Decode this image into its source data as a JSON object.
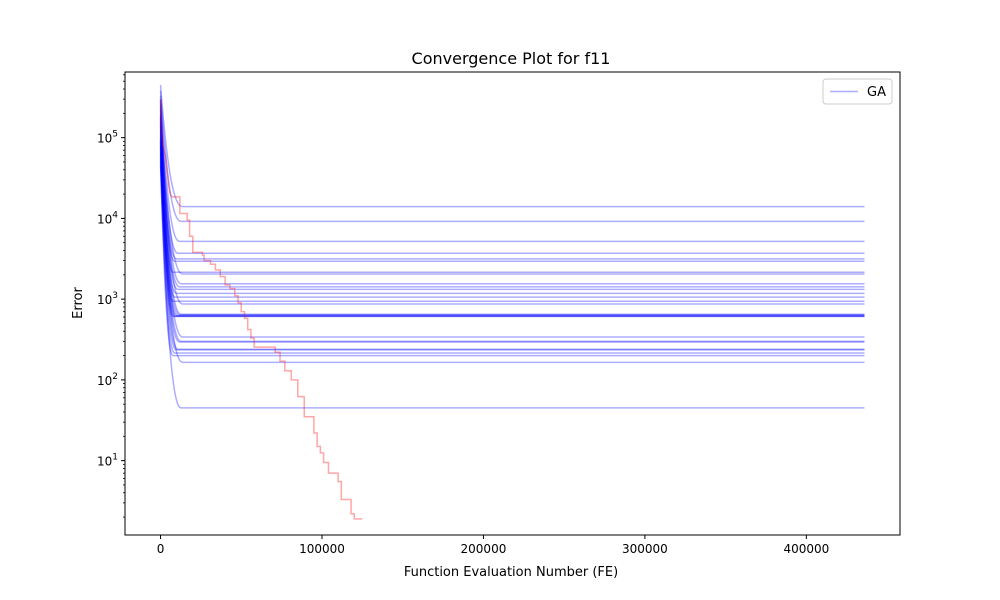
{
  "chart_data": {
    "type": "line",
    "title": "Convergence Plot for f11",
    "xlabel": "Function Evaluation Number (FE)",
    "ylabel": "Error",
    "xlim": [
      -22000,
      458000
    ],
    "ylim": [
      1.2,
      650000
    ],
    "yscale": "log",
    "grid": false,
    "legend": {
      "placement": "top-right",
      "entries": [
        {
          "label": "GA",
          "color": "#0000ff"
        }
      ]
    },
    "x_ticks": [
      {
        "value": 0,
        "label": "0"
      },
      {
        "value": 100000,
        "label": "100000"
      },
      {
        "value": 200000,
        "label": "200000"
      },
      {
        "value": 300000,
        "label": "300000"
      },
      {
        "value": 400000,
        "label": "400000"
      }
    ],
    "y_ticks": [
      {
        "value": 10,
        "base": "10",
        "exp": "1"
      },
      {
        "value": 100,
        "base": "10",
        "exp": "2"
      },
      {
        "value": 1000,
        "base": "10",
        "exp": "3"
      },
      {
        "value": 10000,
        "base": "10",
        "exp": "4"
      },
      {
        "value": 100000,
        "base": "10",
        "exp": "5"
      }
    ],
    "ga_runs": {
      "color": "#0000ff",
      "opacity": 0.32,
      "x_end": 436000,
      "start_values": [
        450000,
        380000,
        330000,
        300000,
        280000,
        260000,
        240000,
        220000,
        200000,
        190000,
        180000,
        170000,
        160000,
        150000,
        140000,
        130000,
        120000,
        110000,
        100000,
        95000,
        90000,
        85000,
        80000,
        75000,
        70000,
        65000,
        60000,
        55000,
        50000,
        45000
      ],
      "final_values": [
        14000,
        9200,
        5200,
        3700,
        3150,
        2950,
        2150,
        2050,
        1550,
        1420,
        1320,
        1180,
        1060,
        940,
        870,
        650,
        640,
        625,
        620,
        615,
        610,
        340,
        300,
        295,
        240,
        235,
        215,
        200,
        165,
        45
      ]
    },
    "red_series": {
      "color": "#ff0000",
      "opacity": 0.35,
      "points": [
        [
          0,
          300000
        ],
        [
          600,
          120000
        ],
        [
          1500,
          80000
        ],
        [
          3000,
          60000
        ],
        [
          4000,
          40000
        ],
        [
          5000,
          25000
        ],
        [
          6000,
          20000
        ],
        [
          7000,
          18500
        ],
        [
          12000,
          18500
        ],
        [
          12000,
          11500
        ],
        [
          16500,
          11500
        ],
        [
          16500,
          9500
        ],
        [
          18000,
          9500
        ],
        [
          18000,
          6000
        ],
        [
          20000,
          6000
        ],
        [
          20000,
          3800
        ],
        [
          26000,
          3800
        ],
        [
          26000,
          3500
        ],
        [
          27000,
          3500
        ],
        [
          27000,
          3000
        ],
        [
          31000,
          3000
        ],
        [
          31000,
          2700
        ],
        [
          34000,
          2700
        ],
        [
          34000,
          2300
        ],
        [
          37000,
          2300
        ],
        [
          37000,
          1900
        ],
        [
          40000,
          1900
        ],
        [
          40000,
          1500
        ],
        [
          43000,
          1500
        ],
        [
          43000,
          1350
        ],
        [
          46000,
          1350
        ],
        [
          46000,
          1100
        ],
        [
          48000,
          1100
        ],
        [
          48000,
          900
        ],
        [
          50000,
          900
        ],
        [
          50000,
          700
        ],
        [
          52000,
          700
        ],
        [
          52000,
          580
        ],
        [
          54000,
          580
        ],
        [
          54000,
          420
        ],
        [
          56000,
          420
        ],
        [
          56000,
          330
        ],
        [
          58000,
          330
        ],
        [
          58000,
          255
        ],
        [
          71000,
          255
        ],
        [
          71000,
          220
        ],
        [
          74000,
          220
        ],
        [
          74000,
          170
        ],
        [
          77000,
          170
        ],
        [
          77000,
          130
        ],
        [
          81000,
          130
        ],
        [
          81000,
          100
        ],
        [
          85000,
          100
        ],
        [
          85000,
          62
        ],
        [
          89000,
          62
        ],
        [
          89000,
          35
        ],
        [
          95000,
          35
        ],
        [
          95000,
          22
        ],
        [
          97000,
          22
        ],
        [
          97000,
          15
        ],
        [
          99000,
          15
        ],
        [
          99000,
          12.5
        ],
        [
          101000,
          12.5
        ],
        [
          101000,
          9.5
        ],
        [
          104000,
          9.5
        ],
        [
          104000,
          7
        ],
        [
          110000,
          7
        ],
        [
          110000,
          5.5
        ],
        [
          112000,
          5.5
        ],
        [
          112000,
          3.3
        ],
        [
          118000,
          3.3
        ],
        [
          118000,
          2.2
        ],
        [
          120000,
          2.2
        ],
        [
          120000,
          1.9
        ],
        [
          125000,
          1.9
        ]
      ]
    }
  }
}
